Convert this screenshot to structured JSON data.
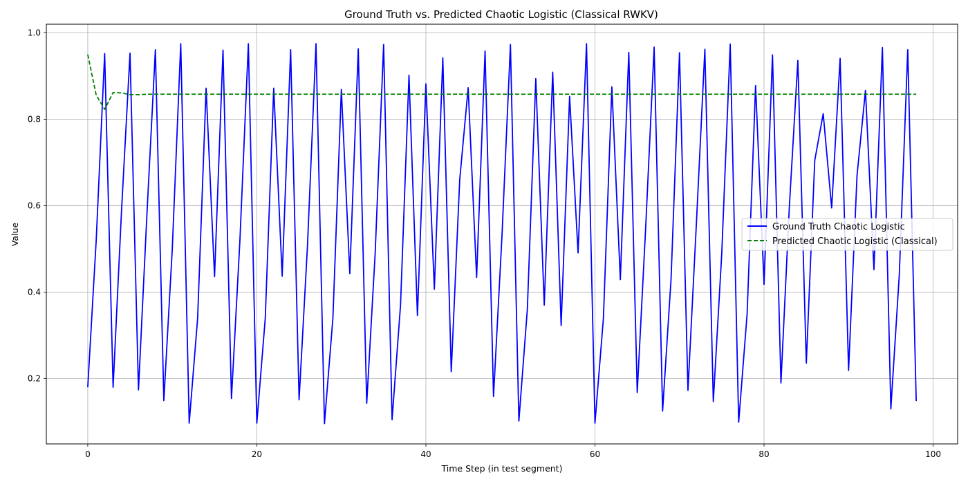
{
  "chart_data": {
    "type": "line",
    "title": "Ground Truth vs. Predicted Chaotic Logistic (Classical RWKV)",
    "xlabel": "Time Step (in test segment)",
    "ylabel": "Value",
    "xlim": [
      -4.9,
      102.9
    ],
    "ylim": [
      0.049,
      1.02
    ],
    "xticks": [
      0,
      20,
      40,
      60,
      80,
      100
    ],
    "yticks": [
      0.2,
      0.4,
      0.6,
      0.8,
      1.0
    ],
    "xtick_labels": [
      "0",
      "20",
      "40",
      "60",
      "80",
      "100"
    ],
    "ytick_labels": [
      "0.2",
      "0.4",
      "0.6",
      "0.8",
      "1.0"
    ],
    "grid": true,
    "legend_position": "center-right",
    "series": [
      {
        "name": "Ground Truth Chaotic Logistic",
        "color": "#0000ff",
        "style": "solid",
        "x": [
          0,
          1,
          2,
          3,
          4,
          5,
          6,
          7,
          8,
          9,
          10,
          11,
          12,
          13,
          14,
          15,
          16,
          17,
          18,
          19,
          20,
          21,
          22,
          23,
          24,
          25,
          26,
          27,
          28,
          29,
          30,
          31,
          32,
          33,
          34,
          35,
          36,
          37,
          38,
          39,
          40,
          41,
          42,
          43,
          44,
          45,
          46,
          47,
          48,
          49,
          50,
          51,
          52,
          53,
          54,
          55,
          56,
          57,
          58,
          59,
          60,
          61,
          62,
          63,
          64,
          65,
          66,
          67,
          68,
          69,
          70,
          71,
          72,
          73,
          74,
          75,
          76,
          77,
          78,
          79,
          80,
          81,
          82,
          83,
          84,
          85,
          86,
          87,
          88,
          89,
          90,
          91,
          92,
          93,
          94,
          95,
          96,
          97,
          98
        ],
        "values": [
          0.18,
          0.52,
          0.952,
          0.18,
          0.59,
          0.953,
          0.174,
          0.58,
          0.961,
          0.149,
          0.5,
          0.975,
          0.097,
          0.34,
          0.872,
          0.436,
          0.96,
          0.154,
          0.52,
          0.975,
          0.097,
          0.34,
          0.872,
          0.437,
          0.961,
          0.151,
          0.51,
          0.975,
          0.096,
          0.34,
          0.869,
          0.443,
          0.963,
          0.143,
          0.49,
          0.973,
          0.105,
          0.37,
          0.902,
          0.346,
          0.882,
          0.407,
          0.942,
          0.216,
          0.66,
          0.873,
          0.434,
          0.958,
          0.159,
          0.53,
          0.973,
          0.102,
          0.36,
          0.894,
          0.37,
          0.909,
          0.323,
          0.853,
          0.491,
          0.975,
          0.097,
          0.34,
          0.875,
          0.429,
          0.955,
          0.168,
          0.55,
          0.967,
          0.125,
          0.43,
          0.954,
          0.173,
          0.56,
          0.962,
          0.147,
          0.49,
          0.974,
          0.099,
          0.35,
          0.878,
          0.418,
          0.949,
          0.19,
          0.6,
          0.936,
          0.236,
          0.705,
          0.813,
          0.595,
          0.941,
          0.219,
          0.67,
          0.867,
          0.452,
          0.966,
          0.13,
          0.44,
          0.961,
          0.148
        ]
      },
      {
        "name": "Predicted Chaotic Logistic (Classical)",
        "color": "#008000",
        "style": "dashed",
        "x": [
          0,
          1,
          2,
          3,
          4,
          5,
          6,
          7,
          8,
          9,
          10,
          11,
          12,
          13,
          14,
          15,
          16,
          17,
          18,
          19,
          20,
          21,
          22,
          23,
          24,
          25,
          26,
          27,
          28,
          29,
          30,
          31,
          32,
          33,
          34,
          35,
          36,
          37,
          38,
          39,
          40,
          41,
          42,
          43,
          44,
          45,
          46,
          47,
          48,
          49,
          50,
          51,
          52,
          53,
          54,
          55,
          56,
          57,
          58,
          59,
          60,
          61,
          62,
          63,
          64,
          65,
          66,
          67,
          68,
          69,
          70,
          71,
          72,
          73,
          74,
          75,
          76,
          77,
          78,
          79,
          80,
          81,
          82,
          83,
          84,
          85,
          86,
          87,
          88,
          89,
          90,
          91,
          92,
          93,
          94,
          95,
          96,
          97,
          98
        ],
        "values": [
          0.95,
          0.856,
          0.823,
          0.862,
          0.861,
          0.857,
          0.857,
          0.858,
          0.858,
          0.858,
          0.858,
          0.858,
          0.858,
          0.858,
          0.858,
          0.858,
          0.858,
          0.858,
          0.858,
          0.858,
          0.858,
          0.858,
          0.858,
          0.858,
          0.858,
          0.858,
          0.858,
          0.858,
          0.858,
          0.858,
          0.858,
          0.858,
          0.858,
          0.858,
          0.858,
          0.858,
          0.858,
          0.858,
          0.858,
          0.858,
          0.858,
          0.858,
          0.858,
          0.858,
          0.858,
          0.858,
          0.858,
          0.858,
          0.858,
          0.858,
          0.858,
          0.858,
          0.858,
          0.858,
          0.858,
          0.858,
          0.858,
          0.858,
          0.858,
          0.858,
          0.858,
          0.858,
          0.858,
          0.858,
          0.858,
          0.858,
          0.858,
          0.858,
          0.858,
          0.858,
          0.858,
          0.858,
          0.858,
          0.858,
          0.858,
          0.858,
          0.858,
          0.858,
          0.858,
          0.858,
          0.858,
          0.858,
          0.858,
          0.858,
          0.858,
          0.858,
          0.858,
          0.858,
          0.858,
          0.858,
          0.858,
          0.858,
          0.858,
          0.858,
          0.858,
          0.858,
          0.858,
          0.858,
          0.858
        ]
      }
    ]
  }
}
